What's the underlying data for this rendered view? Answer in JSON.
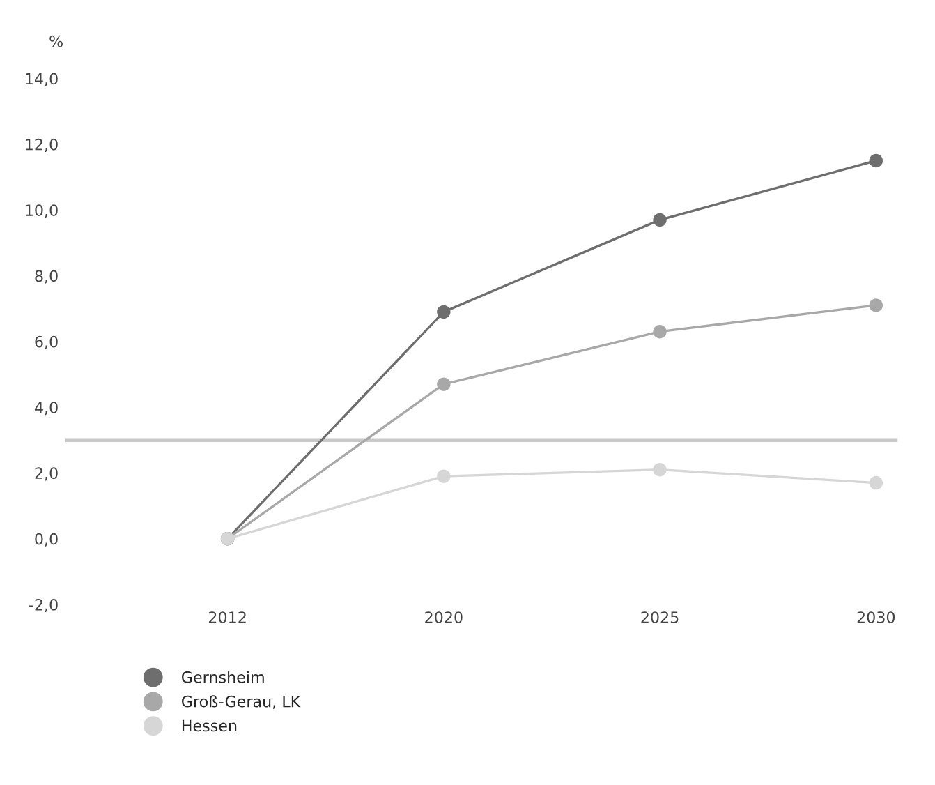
{
  "chart_data": {
    "type": "line",
    "ylabel": "%",
    "categories": [
      "2012",
      "2020",
      "2025",
      "2030"
    ],
    "series": [
      {
        "name": "Gernsheim",
        "color": "#6e6e6e",
        "values": [
          0.0,
          6.9,
          9.7,
          11.5
        ]
      },
      {
        "name": "Groß-Gerau, LK",
        "color": "#a8a8a8",
        "values": [
          0.0,
          4.7,
          6.3,
          7.1
        ]
      },
      {
        "name": "Hessen",
        "color": "#d6d6d6",
        "values": [
          0.0,
          1.9,
          2.1,
          1.7
        ]
      }
    ],
    "ylim": [
      -2,
      14
    ],
    "yticks": [
      {
        "value": -2,
        "label": "-2,0"
      },
      {
        "value": 0,
        "label": "0,0"
      },
      {
        "value": 2,
        "label": "2,0"
      },
      {
        "value": 4,
        "label": "4,0"
      },
      {
        "value": 6,
        "label": "6,0"
      },
      {
        "value": 8,
        "label": "8,0"
      },
      {
        "value": 10,
        "label": "10,0"
      },
      {
        "value": 12,
        "label": "12,0"
      },
      {
        "value": 14,
        "label": "14,0"
      }
    ],
    "ref_lines": [
      {
        "axis": "y",
        "value": 3.0,
        "color": "#c8c8c8"
      }
    ],
    "marker": "circle",
    "line_style": "solid",
    "grid": false,
    "legend": "bottom left"
  }
}
